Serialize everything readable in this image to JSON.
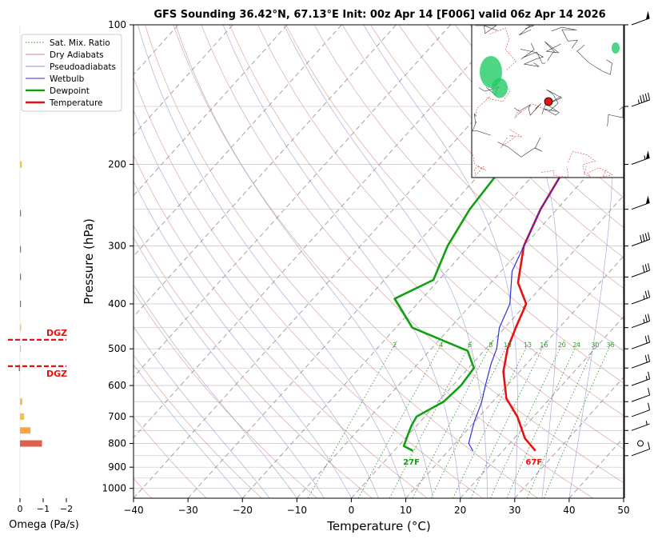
{
  "chart_data": {
    "type": "line",
    "title": "GFS Sounding 36.42°N, 67.13°E Init: 00z Apr 14 [F006] valid 06z Apr 14 2026",
    "xlabel": "Temperature (°C)",
    "ylabel": "Pressure (hPa)",
    "xlim": [
      -40,
      50
    ],
    "ylim": [
      1050,
      100
    ],
    "y_scale": "log",
    "x_ticks": [
      "−40",
      "−30",
      "−20",
      "−10",
      "0",
      "10",
      "20",
      "30",
      "40",
      "50"
    ],
    "y_ticks": [
      "100",
      "200",
      "300",
      "400",
      "500",
      "600",
      "700",
      "800",
      "900",
      "1000"
    ],
    "legend": {
      "placement": "top-left",
      "entries": [
        {
          "label": "Sat. Mix. Ratio",
          "color": "#2e8b2e",
          "style": "dotted"
        },
        {
          "label": "Dry Adiabats",
          "color": "#d08080",
          "style": "solid"
        },
        {
          "label": "Pseudoadiabats",
          "color": "#9090d0",
          "style": "solid"
        },
        {
          "label": "Wetbulb",
          "color": "#3030e0",
          "style": "solid"
        },
        {
          "label": "Dewpoint",
          "color": "#12a012",
          "style": "solid"
        },
        {
          "label": "Temperature",
          "color": "#e81010",
          "style": "solid"
        }
      ]
    },
    "series": [
      {
        "name": "Temperature",
        "color": "#e81010",
        "points": [
          [
            26,
            830
          ],
          [
            22,
            780
          ],
          [
            17,
            700
          ],
          [
            12,
            640
          ],
          [
            7,
            560
          ],
          [
            4,
            500
          ],
          [
            2,
            450
          ],
          [
            0,
            400
          ],
          [
            -5,
            360
          ],
          [
            -10,
            300
          ],
          [
            -13,
            250
          ],
          [
            -15.5,
            200
          ],
          [
            -10,
            160
          ],
          [
            -4,
            130
          ],
          [
            1,
            100
          ]
        ]
      },
      {
        "name": "Dewpoint",
        "color": "#12a012",
        "points": [
          [
            3.5,
            830
          ],
          [
            1,
            810
          ],
          [
            0,
            770
          ],
          [
            -1,
            730
          ],
          [
            -1.5,
            700
          ],
          [
            1,
            650
          ],
          [
            1.5,
            600
          ],
          [
            1,
            550
          ],
          [
            -3,
            505
          ],
          [
            -17,
            450
          ],
          [
            -25,
            390
          ],
          [
            -21,
            355
          ],
          [
            -24,
            300
          ],
          [
            -26,
            250
          ],
          [
            -27,
            200
          ],
          [
            -26,
            150
          ],
          [
            -25,
            120
          ],
          [
            -23,
            100
          ]
        ]
      },
      {
        "name": "Wetbulb",
        "color": "#3030e0",
        "points": [
          [
            14.5,
            830
          ],
          [
            12.5,
            800
          ],
          [
            10,
            720
          ],
          [
            8,
            650
          ],
          [
            6,
            600
          ],
          [
            3.5,
            540
          ],
          [
            2,
            500
          ],
          [
            -1,
            450
          ],
          [
            -3,
            400
          ],
          [
            -8,
            340
          ],
          [
            -10,
            300
          ],
          [
            -13,
            250
          ],
          [
            -15.5,
            200
          ]
        ]
      }
    ],
    "mixing_ratio_labels": [
      "2",
      "4",
      "6",
      "8",
      "10",
      "13",
      "16",
      "20",
      "24",
      "30",
      "36"
    ],
    "surface_labels": {
      "temperature": "67F",
      "dewpoint": "27F"
    },
    "dgz_label": "DGZ",
    "dgz_pressures": [
      478,
      545
    ],
    "omega": {
      "xlabel": "Omega (Pa/s)",
      "x_ticks": [
        "0",
        "−1",
        "−2"
      ],
      "xlim": [
        0.3,
        -2.3
      ],
      "bars": [
        {
          "p": 200,
          "value": -0.08,
          "color": "#f5c242"
        },
        {
          "p": 255,
          "value": -0.02,
          "color": "#777777"
        },
        {
          "p": 305,
          "value": -0.02,
          "color": "#777777"
        },
        {
          "p": 350,
          "value": -0.02,
          "color": "#777777"
        },
        {
          "p": 400,
          "value": -0.02,
          "color": "#777777"
        },
        {
          "p": 450,
          "value": -0.05,
          "color": "#f5c242"
        },
        {
          "p": 500,
          "value": -0.03,
          "color": "#f5c242"
        },
        {
          "p": 550,
          "value": 0.05,
          "color": "#777777"
        },
        {
          "p": 650,
          "value": -0.1,
          "color": "#f5c242"
        },
        {
          "p": 700,
          "value": -0.18,
          "color": "#f5c242"
        },
        {
          "p": 750,
          "value": -0.45,
          "color": "#f5a742"
        },
        {
          "p": 800,
          "value": -0.95,
          "color": "#e06050"
        }
      ]
    },
    "wind_barbs": [
      {
        "p": 100,
        "speed_kt": 50
      },
      {
        "p": 150,
        "speed_kt": 45
      },
      {
        "p": 200,
        "speed_kt": 55
      },
      {
        "p": 250,
        "speed_kt": 50
      },
      {
        "p": 300,
        "speed_kt": 40
      },
      {
        "p": 350,
        "speed_kt": 30
      },
      {
        "p": 400,
        "speed_kt": 25
      },
      {
        "p": 450,
        "speed_kt": 25
      },
      {
        "p": 500,
        "speed_kt": 20
      },
      {
        "p": 550,
        "speed_kt": 20
      },
      {
        "p": 600,
        "speed_kt": 15
      },
      {
        "p": 650,
        "speed_kt": 10
      },
      {
        "p": 700,
        "speed_kt": 10
      },
      {
        "p": 750,
        "speed_kt": 5
      },
      {
        "p": 800,
        "speed_kt": 0
      },
      {
        "p": 850,
        "speed_kt": 10
      }
    ]
  }
}
